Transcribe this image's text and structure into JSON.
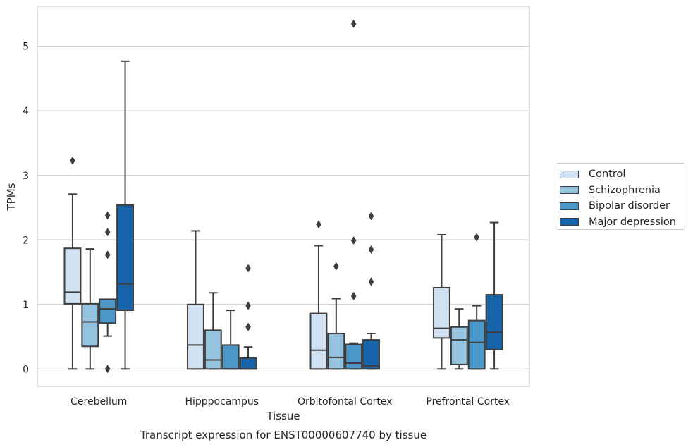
{
  "chart_data": {
    "type": "box",
    "title": "",
    "caption": "Transcript expression for ENST00000607740 by tissue",
    "xlabel": "Tissue",
    "ylabel": "TPMs",
    "ylim": [
      -0.27,
      5.62
    ],
    "yticks": [
      0,
      1,
      2,
      3,
      4,
      5
    ],
    "grid": "horizontal",
    "legend_position": "right",
    "categories": [
      "Cerebellum",
      "Hipppocampus",
      "Orbitofontal Cortex",
      "Prefrontal Cortex"
    ],
    "series": [
      {
        "name": "Control",
        "color": "#d0e1f2",
        "boxes": [
          {
            "whislo": 0,
            "q1": 1.01,
            "med": 1.19,
            "q3": 1.87,
            "whishi": 2.71,
            "fliers": [
              3.23
            ]
          },
          {
            "whislo": 0,
            "q1": 0.0,
            "med": 0.37,
            "q3": 1.0,
            "whishi": 2.14,
            "fliers": []
          },
          {
            "whislo": 0,
            "q1": 0.0,
            "med": 0.29,
            "q3": 0.86,
            "whishi": 1.91,
            "fliers": [
              2.24
            ]
          },
          {
            "whislo": 0,
            "q1": 0.48,
            "med": 0.63,
            "q3": 1.26,
            "whishi": 2.08,
            "fliers": []
          }
        ]
      },
      {
        "name": "Schizophrenia",
        "color": "#94c4df",
        "boxes": [
          {
            "whislo": 0,
            "q1": 0.35,
            "med": 0.73,
            "q3": 1.01,
            "whishi": 1.86,
            "fliers": []
          },
          {
            "whislo": 0,
            "q1": 0.0,
            "med": 0.14,
            "q3": 0.6,
            "whishi": 1.18,
            "fliers": []
          },
          {
            "whislo": 0,
            "q1": 0.0,
            "med": 0.18,
            "q3": 0.55,
            "whishi": 1.09,
            "fliers": [
              1.59
            ]
          },
          {
            "whislo": 0,
            "q1": 0.07,
            "med": 0.45,
            "q3": 0.65,
            "whishi": 0.93,
            "fliers": []
          }
        ]
      },
      {
        "name": "Bipolar disorder",
        "color": "#4a98c9",
        "boxes": [
          {
            "whislo": 0.51,
            "q1": 0.71,
            "med": 0.93,
            "q3": 1.08,
            "whishi": 1.08,
            "fliers": [
              0,
              1.77,
              2.12,
              2.38
            ]
          },
          {
            "whislo": 0,
            "q1": 0.0,
            "med": 0.0,
            "q3": 0.37,
            "whishi": 0.91,
            "fliers": []
          },
          {
            "whislo": 0,
            "q1": 0.0,
            "med": 0.09,
            "q3": 0.38,
            "whishi": 0.4,
            "fliers": [
              1.13,
              1.99,
              5.35
            ]
          },
          {
            "whislo": 0,
            "q1": 0.0,
            "med": 0.41,
            "q3": 0.75,
            "whishi": 0.98,
            "fliers": [
              2.04
            ]
          }
        ]
      },
      {
        "name": "Major depression",
        "color": "#1764ab",
        "boxes": [
          {
            "whislo": 0,
            "q1": 0.91,
            "med": 1.32,
            "q3": 2.54,
            "whishi": 4.77,
            "fliers": []
          },
          {
            "whislo": 0,
            "q1": 0.0,
            "med": 0.0,
            "q3": 0.17,
            "whishi": 0.34,
            "fliers": [
              0.65,
              0.98,
              1.56
            ]
          },
          {
            "whislo": 0,
            "q1": 0.0,
            "med": 0.05,
            "q3": 0.45,
            "whishi": 0.55,
            "fliers": [
              1.35,
              1.85,
              2.37
            ]
          },
          {
            "whislo": 0,
            "q1": 0.3,
            "med": 0.57,
            "q3": 1.15,
            "whishi": 2.27,
            "fliers": []
          }
        ]
      }
    ]
  }
}
